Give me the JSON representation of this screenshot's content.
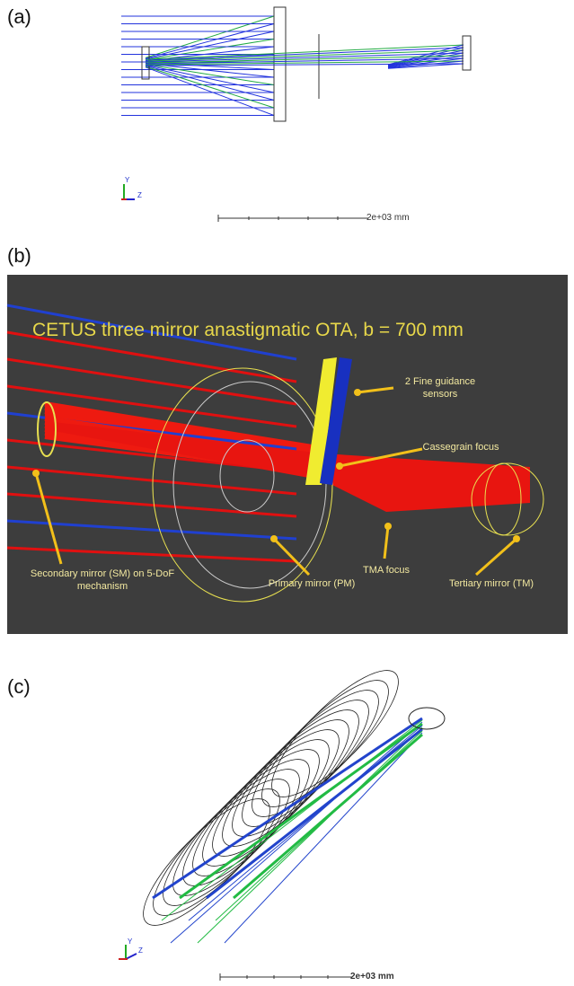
{
  "panels": [
    {
      "label": "(a)",
      "scale_label": "2e+03 mm",
      "axis_labels": [
        "Y",
        "Z"
      ]
    },
    {
      "label": "(b)",
      "title": "CETUS three mirror anastigmatic OTA, b = 700 mm",
      "annotations": [
        "2 Fine guidance sensors",
        "Cassegrain focus",
        "TMA focus",
        "Secondary mirror (SM) on 5-DoF mechanism",
        "Primary mirror (PM)",
        "Tertiary mirror (TM)"
      ]
    },
    {
      "label": "(c)",
      "scale_label": "2e+03 mm",
      "axis_labels": [
        "Y",
        "Z"
      ]
    }
  ]
}
